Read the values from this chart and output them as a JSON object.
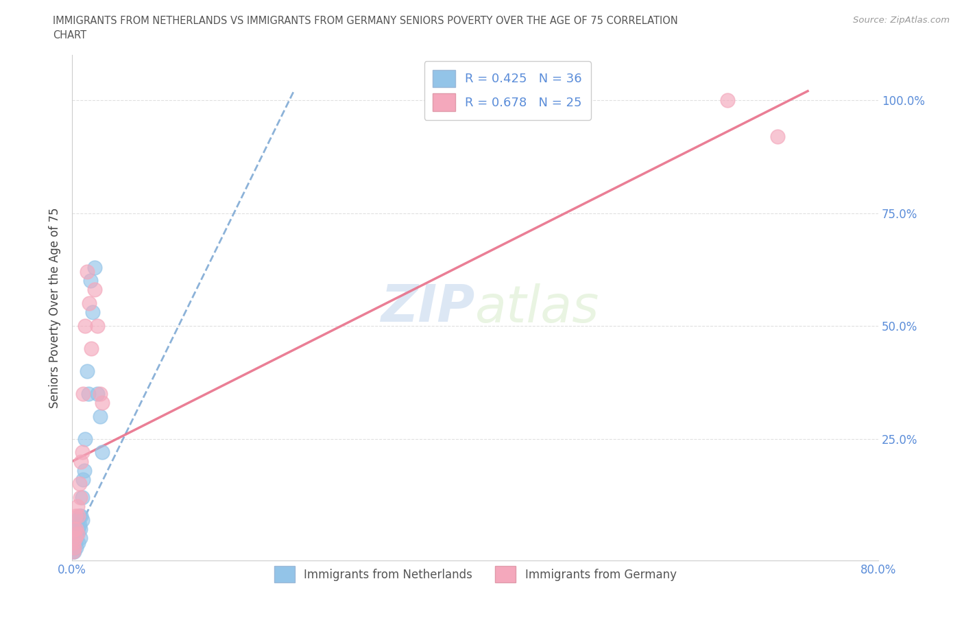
{
  "title_line1": "IMMIGRANTS FROM NETHERLANDS VS IMMIGRANTS FROM GERMANY SENIORS POVERTY OVER THE AGE OF 75 CORRELATION",
  "title_line2": "CHART",
  "source": "Source: ZipAtlas.com",
  "ylabel": "Seniors Poverty Over the Age of 75",
  "xlim": [
    0.0,
    0.8
  ],
  "ylim": [
    -0.02,
    1.1
  ],
  "netherlands_color": "#93c4e8",
  "germany_color": "#f4a8bc",
  "nl_line_color": "#6699cc",
  "de_line_color": "#e8708a",
  "netherlands_R": 0.425,
  "netherlands_N": 36,
  "germany_R": 0.678,
  "germany_N": 25,
  "netherlands_x": [
    0.001,
    0.001,
    0.001,
    0.001,
    0.002,
    0.002,
    0.002,
    0.002,
    0.003,
    0.003,
    0.003,
    0.004,
    0.004,
    0.004,
    0.005,
    0.005,
    0.006,
    0.006,
    0.007,
    0.007,
    0.008,
    0.008,
    0.009,
    0.01,
    0.01,
    0.011,
    0.012,
    0.013,
    0.015,
    0.016,
    0.018,
    0.02,
    0.022,
    0.025,
    0.028,
    0.03
  ],
  "netherlands_y": [
    0.0,
    0.01,
    0.02,
    0.03,
    0.0,
    0.01,
    0.02,
    0.04,
    0.02,
    0.03,
    0.05,
    0.01,
    0.03,
    0.06,
    0.04,
    0.07,
    0.02,
    0.05,
    0.06,
    0.08,
    0.05,
    0.03,
    0.08,
    0.12,
    0.07,
    0.16,
    0.18,
    0.25,
    0.4,
    0.35,
    0.6,
    0.53,
    0.63,
    0.35,
    0.3,
    0.22
  ],
  "germany_x": [
    0.001,
    0.001,
    0.002,
    0.002,
    0.003,
    0.003,
    0.004,
    0.005,
    0.005,
    0.006,
    0.007,
    0.008,
    0.009,
    0.01,
    0.011,
    0.013,
    0.015,
    0.017,
    0.019,
    0.022,
    0.025,
    0.028,
    0.03,
    0.65,
    0.7
  ],
  "germany_y": [
    0.0,
    0.02,
    0.01,
    0.05,
    0.03,
    0.08,
    0.05,
    0.04,
    0.1,
    0.08,
    0.15,
    0.12,
    0.2,
    0.22,
    0.35,
    0.5,
    0.62,
    0.55,
    0.45,
    0.58,
    0.5,
    0.35,
    0.33,
    1.0,
    0.92
  ],
  "watermark_zip": "ZIP",
  "watermark_atlas": "atlas",
  "background_color": "#ffffff",
  "grid_color": "#e0e0e0",
  "axis_color": "#cccccc",
  "legend_label_netherlands": "Immigrants from Netherlands",
  "legend_label_germany": "Immigrants from Germany",
  "tick_color": "#5b8dd9",
  "title_color": "#555555",
  "ylabel_color": "#444444"
}
